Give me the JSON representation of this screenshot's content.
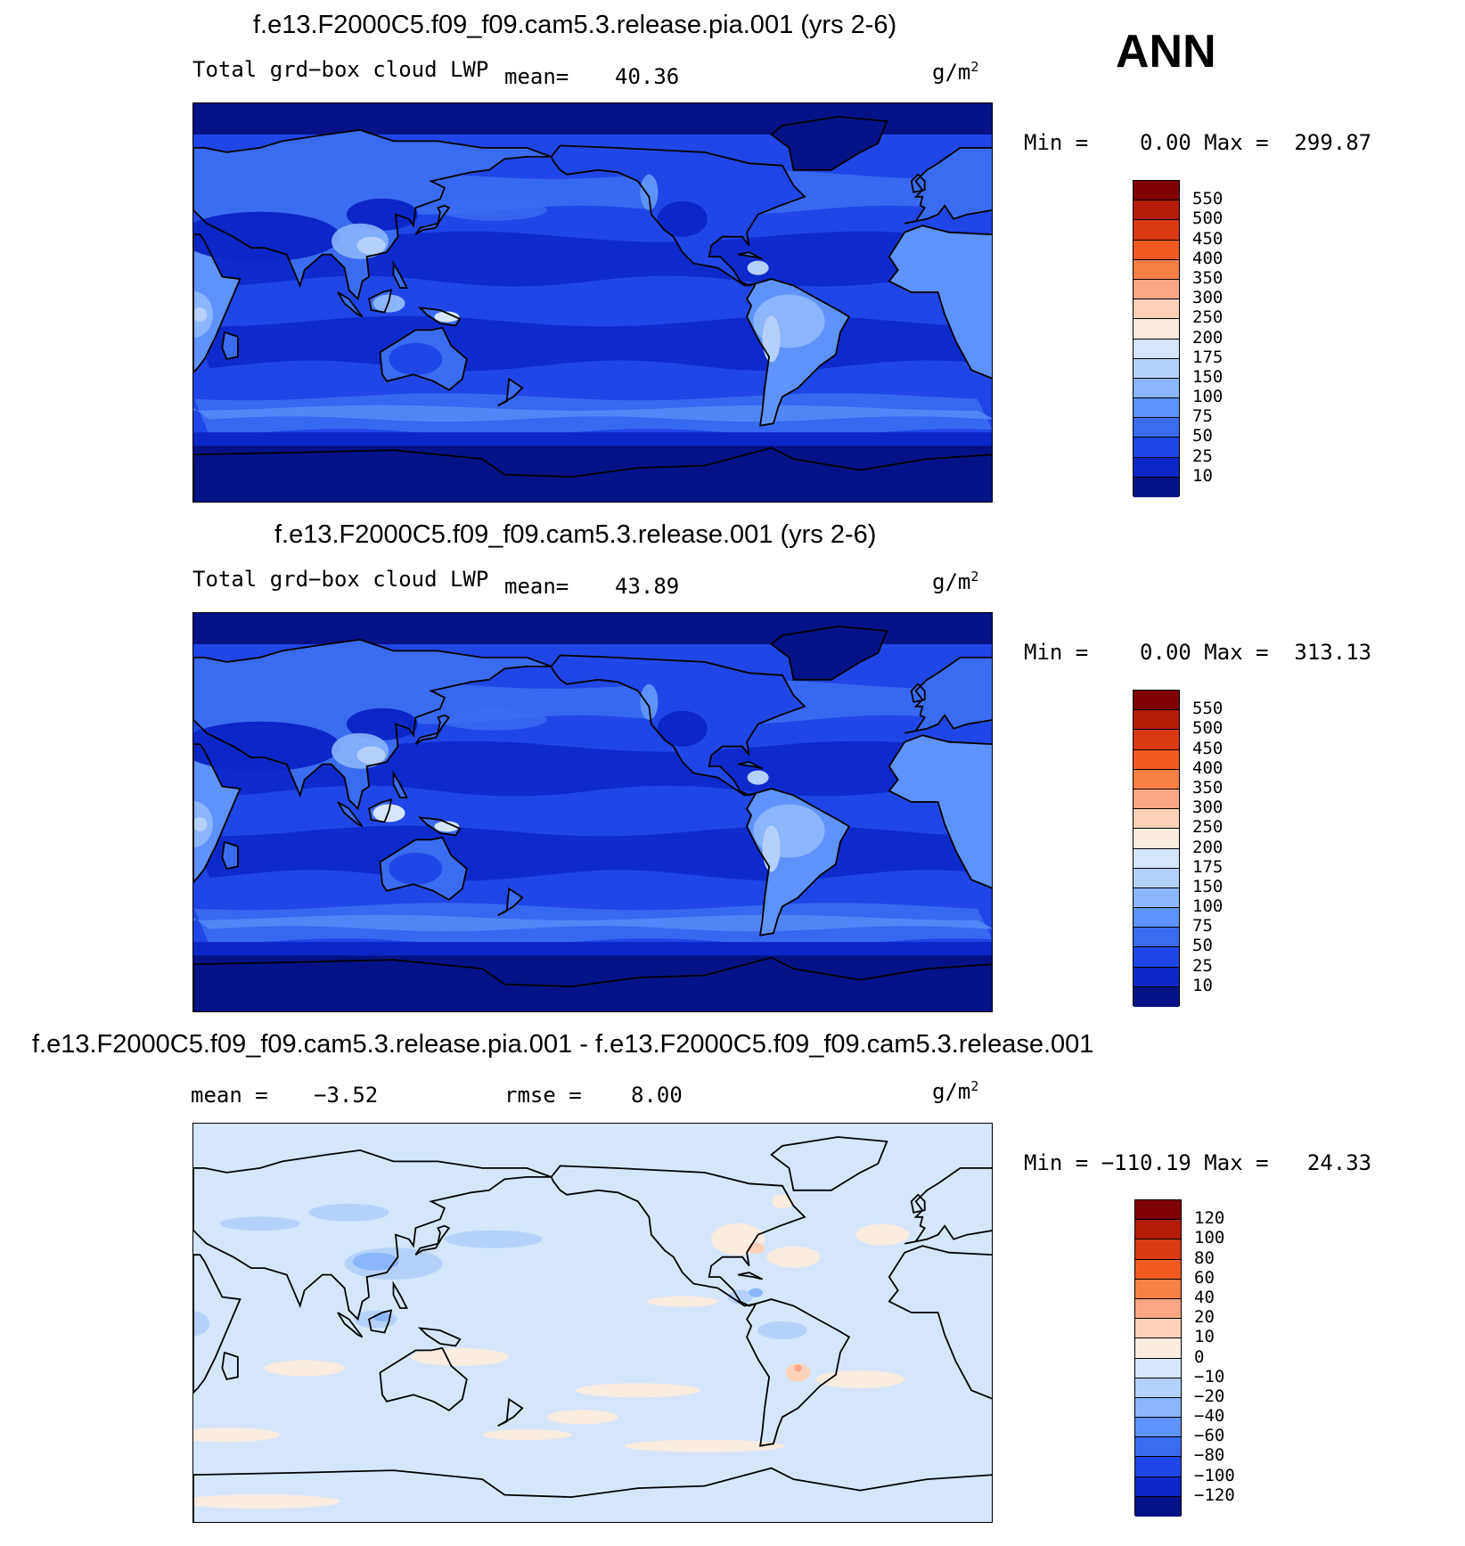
{
  "season": "ANN",
  "panels": [
    {
      "id": "p1",
      "title": "f.e13.F2000C5.f09_f09.cam5.3.release.pia.001 (yrs 2-6)",
      "field": "Total grd−box cloud LWP",
      "mean_label": "mean=",
      "mean_value": "40.36",
      "units_base": "g/m",
      "units_exp": "2",
      "minmax": "Min =    0.00 Max =  299.87",
      "colorbar": {
        "labels": [
          "550",
          "500",
          "450",
          "400",
          "350",
          "300",
          "250",
          "200",
          "175",
          "150",
          "100",
          "75",
          "50",
          "25",
          "10"
        ],
        "colors": [
          "#7f0000",
          "#b51c05",
          "#d93a12",
          "#f15a22",
          "#fa8046",
          "#fca783",
          "#fcd1b8",
          "#fbece0",
          "#d5e6fa",
          "#b5d1fb",
          "#8ab6fc",
          "#5e93fb",
          "#3a6cf2",
          "#1f46e6",
          "#0b27c7",
          "#041286"
        ]
      },
      "map_style": "absolute"
    },
    {
      "id": "p2",
      "title": "f.e13.F2000C5.f09_f09.cam5.3.release.001 (yrs 2-6)",
      "field": "Total grd−box cloud LWP",
      "mean_label": "mean=",
      "mean_value": "43.89",
      "units_base": "g/m",
      "units_exp": "2",
      "minmax": "Min =    0.00 Max =  313.13",
      "colorbar": {
        "labels": [
          "550",
          "500",
          "450",
          "400",
          "350",
          "300",
          "250",
          "200",
          "175",
          "150",
          "100",
          "75",
          "50",
          "25",
          "10"
        ],
        "colors": [
          "#7f0000",
          "#b51c05",
          "#d93a12",
          "#f15a22",
          "#fa8046",
          "#fca783",
          "#fcd1b8",
          "#fbece0",
          "#d5e6fa",
          "#b5d1fb",
          "#8ab6fc",
          "#5e93fb",
          "#3a6cf2",
          "#1f46e6",
          "#0b27c7",
          "#041286"
        ]
      },
      "map_style": "absolute"
    },
    {
      "id": "p3",
      "title": "f.e13.F2000C5.f09_f09.cam5.3.release.pia.001 - f.e13.F2000C5.f09_f09.cam5.3.release.001",
      "mean_label": "mean =",
      "mean_value": "−3.52",
      "rmse_label": "rmse =",
      "rmse_value": "8.00",
      "units_base": "g/m",
      "units_exp": "2",
      "minmax": "Min = −110.19 Max =   24.33",
      "colorbar": {
        "labels": [
          "120",
          "100",
          "80",
          "60",
          "40",
          "20",
          "10",
          "0",
          "−10",
          "−20",
          "−40",
          "−60",
          "−80",
          "−100",
          "−120"
        ],
        "colors": [
          "#7f0000",
          "#b51c05",
          "#d93a12",
          "#f15a22",
          "#fa8046",
          "#fca783",
          "#fcd1b8",
          "#fbece0",
          "#d5e6fa",
          "#b5d1fb",
          "#8ab6fc",
          "#5e93fb",
          "#3a6cf2",
          "#1f46e6",
          "#0b27c7",
          "#041286"
        ]
      },
      "map_style": "difference"
    }
  ]
}
